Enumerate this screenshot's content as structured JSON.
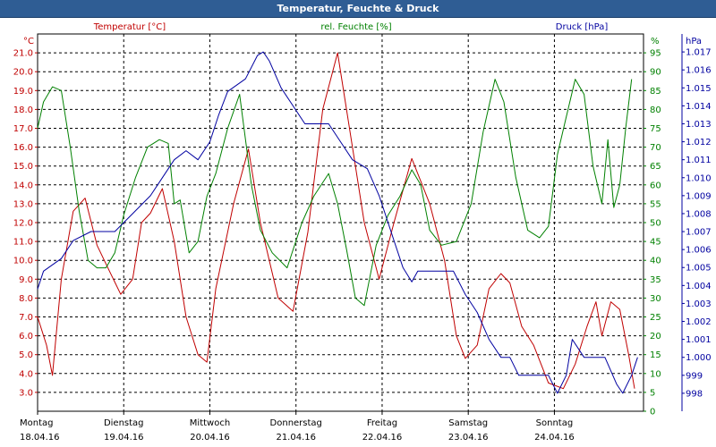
{
  "window": {
    "title": "Temperatur, Feuchte & Druck"
  },
  "colors": {
    "temperature": "#c00000",
    "humidity": "#008000",
    "pressure": "#0000a0",
    "grid": "#000000"
  },
  "chart_data": {
    "type": "line",
    "title": "Temperatur, Feuchte & Druck",
    "grid": true,
    "x_labels": [
      {
        "day": "Montag",
        "date": "18.04.16"
      },
      {
        "day": "Dienstag",
        "date": "19.04.16"
      },
      {
        "day": "Mittwoch",
        "date": "20.04.16"
      },
      {
        "day": "Donnerstag",
        "date": "21.04.16"
      },
      {
        "day": "Freitag",
        "date": "22.04.16"
      },
      {
        "day": "Samstag",
        "date": "23.04.16"
      },
      {
        "day": "Sonntag",
        "date": "24.04.16"
      }
    ],
    "x_range_days": [
      0,
      7
    ],
    "axes": {
      "left": {
        "label": "Temperatur [°C]",
        "unit": "°C",
        "min": 2,
        "max": 22,
        "ticks": [
          "3.0",
          "4.0",
          "5.0",
          "6.0",
          "7.0",
          "8.0",
          "9.0",
          "10.0",
          "11.0",
          "12.0",
          "13.0",
          "14.0",
          "15.0",
          "16.0",
          "17.0",
          "18.0",
          "19.0",
          "20.0",
          "21.0"
        ]
      },
      "middle": {
        "label": "rel. Feuchte [%]",
        "unit": "%",
        "min": 0,
        "max": 100,
        "ticks": [
          "0",
          "5",
          "10",
          "15",
          "20",
          "25",
          "30",
          "35",
          "40",
          "45",
          "50",
          "55",
          "60",
          "65",
          "70",
          "75",
          "80",
          "85",
          "90",
          "95"
        ]
      },
      "right": {
        "label": "Druck [hPa]",
        "unit": "hPa",
        "min": 997,
        "max": 1018,
        "ticks": [
          "998",
          "999",
          "1.000",
          "1.001",
          "1.002",
          "1.003",
          "1.004",
          "1.005",
          "1.006",
          "1.007",
          "1.008",
          "1.009",
          "1.010",
          "1.011",
          "1.012",
          "1.013",
          "1.014",
          "1.015",
          "1.016",
          "1.017"
        ]
      }
    },
    "series": [
      {
        "name": "Temperatur [°C]",
        "axis": "left",
        "color": "#c00000",
        "points": [
          [
            0,
            7
          ],
          [
            0.15,
            5.5
          ],
          [
            0.25,
            3.9
          ],
          [
            0.4,
            9
          ],
          [
            0.6,
            12.6
          ],
          [
            0.8,
            13.3
          ],
          [
            1.0,
            10.8
          ],
          [
            1.2,
            9.5
          ],
          [
            1.4,
            8.2
          ],
          [
            1.6,
            9
          ],
          [
            1.75,
            12
          ],
          [
            1.9,
            12.5
          ],
          [
            2.1,
            13.8
          ],
          [
            2.3,
            11
          ],
          [
            2.5,
            7
          ],
          [
            2.7,
            5
          ],
          [
            2.85,
            4.6
          ],
          [
            3.0,
            8.5
          ],
          [
            3.3,
            13
          ],
          [
            3.55,
            15.9
          ],
          [
            3.75,
            12
          ],
          [
            4.05,
            8
          ],
          [
            4.3,
            7.3
          ],
          [
            4.55,
            11.5
          ],
          [
            4.8,
            18
          ],
          [
            5.05,
            21
          ],
          [
            5.3,
            16
          ],
          [
            5.5,
            12
          ],
          [
            5.75,
            9
          ],
          [
            6.0,
            12
          ],
          [
            6.3,
            15.4
          ],
          [
            6.6,
            13
          ],
          [
            6.85,
            10
          ],
          [
            7.05,
            6
          ],
          [
            7.2,
            4.8
          ],
          [
            7.4,
            5.5
          ],
          [
            7.6,
            8.5
          ],
          [
            7.8,
            9.3
          ],
          [
            7.95,
            8.8
          ],
          [
            8.15,
            6.5
          ],
          [
            8.35,
            5.5
          ],
          [
            8.6,
            3.5
          ],
          [
            8.85,
            3.2
          ],
          [
            9.05,
            4.5
          ],
          [
            9.25,
            6.5
          ],
          [
            9.4,
            7.8
          ],
          [
            9.5,
            6
          ],
          [
            9.65,
            7.8
          ],
          [
            9.8,
            7.4
          ],
          [
            9.95,
            5
          ],
          [
            10.05,
            3.2
          ]
        ]
      },
      {
        "name": "rel. Feuchte [%]",
        "axis": "middle",
        "color": "#008000",
        "points": [
          [
            0,
            75
          ],
          [
            0.1,
            82
          ],
          [
            0.25,
            86
          ],
          [
            0.4,
            85
          ],
          [
            0.55,
            70
          ],
          [
            0.7,
            53
          ],
          [
            0.85,
            40
          ],
          [
            1.0,
            38
          ],
          [
            1.15,
            38
          ],
          [
            1.3,
            42
          ],
          [
            1.45,
            52
          ],
          [
            1.65,
            62
          ],
          [
            1.85,
            70
          ],
          [
            2.05,
            72
          ],
          [
            2.2,
            71
          ],
          [
            2.3,
            55
          ],
          [
            2.4,
            56
          ],
          [
            2.55,
            42
          ],
          [
            2.7,
            45
          ],
          [
            2.85,
            57
          ],
          [
            3.0,
            63
          ],
          [
            3.2,
            75
          ],
          [
            3.4,
            84
          ],
          [
            3.6,
            60
          ],
          [
            3.75,
            48
          ],
          [
            3.95,
            42
          ],
          [
            4.2,
            38
          ],
          [
            4.45,
            50
          ],
          [
            4.65,
            57
          ],
          [
            4.9,
            63
          ],
          [
            5.05,
            55
          ],
          [
            5.2,
            43
          ],
          [
            5.35,
            30
          ],
          [
            5.5,
            28
          ],
          [
            5.7,
            44
          ],
          [
            5.9,
            52
          ],
          [
            6.1,
            57
          ],
          [
            6.3,
            64
          ],
          [
            6.45,
            60
          ],
          [
            6.6,
            48
          ],
          [
            6.8,
            44
          ],
          [
            7.05,
            45
          ],
          [
            7.3,
            55
          ],
          [
            7.5,
            74
          ],
          [
            7.7,
            88
          ],
          [
            7.85,
            82
          ],
          [
            8.05,
            62
          ],
          [
            8.25,
            48
          ],
          [
            8.45,
            46
          ],
          [
            8.6,
            49
          ],
          [
            8.75,
            68
          ],
          [
            8.9,
            78
          ],
          [
            9.05,
            88
          ],
          [
            9.2,
            84
          ],
          [
            9.35,
            65
          ],
          [
            9.5,
            55
          ],
          [
            9.6,
            72
          ],
          [
            9.7,
            54
          ],
          [
            9.8,
            60
          ],
          [
            9.9,
            75
          ],
          [
            10.0,
            88
          ]
        ]
      },
      {
        "name": "Druck [hPa]",
        "axis": "right",
        "color": "#0000a0",
        "points": [
          [
            0,
            1003.8
          ],
          [
            0.1,
            1004.8
          ],
          [
            0.4,
            1005.5
          ],
          [
            0.6,
            1006.5
          ],
          [
            0.9,
            1007
          ],
          [
            1.3,
            1007
          ],
          [
            1.6,
            1008
          ],
          [
            1.9,
            1009
          ],
          [
            2.1,
            1010
          ],
          [
            2.3,
            1011
          ],
          [
            2.5,
            1011.5
          ],
          [
            2.7,
            1011
          ],
          [
            2.9,
            1012
          ],
          [
            3.05,
            1013.5
          ],
          [
            3.2,
            1014.8
          ],
          [
            3.5,
            1015.5
          ],
          [
            3.7,
            1016.8
          ],
          [
            3.8,
            1017
          ],
          [
            3.9,
            1016.5
          ],
          [
            4.1,
            1015
          ],
          [
            4.3,
            1014
          ],
          [
            4.5,
            1013
          ],
          [
            4.9,
            1013
          ],
          [
            5.1,
            1012
          ],
          [
            5.3,
            1011
          ],
          [
            5.55,
            1010.5
          ],
          [
            5.75,
            1009
          ],
          [
            5.85,
            1008
          ],
          [
            6.0,
            1006.5
          ],
          [
            6.15,
            1005
          ],
          [
            6.3,
            1004.2
          ],
          [
            6.4,
            1004.8
          ],
          [
            7.0,
            1004.8
          ],
          [
            7.2,
            1003.5
          ],
          [
            7.4,
            1002.5
          ],
          [
            7.6,
            1001
          ],
          [
            7.8,
            1000
          ],
          [
            7.95,
            1000
          ],
          [
            8.1,
            999
          ],
          [
            8.6,
            999
          ],
          [
            8.75,
            998
          ],
          [
            8.9,
            999
          ],
          [
            9.0,
            1001
          ],
          [
            9.2,
            1000
          ],
          [
            9.55,
            1000
          ],
          [
            9.75,
            998.5
          ],
          [
            9.85,
            998
          ],
          [
            10.0,
            999
          ],
          [
            10.1,
            1000
          ]
        ]
      }
    ]
  }
}
